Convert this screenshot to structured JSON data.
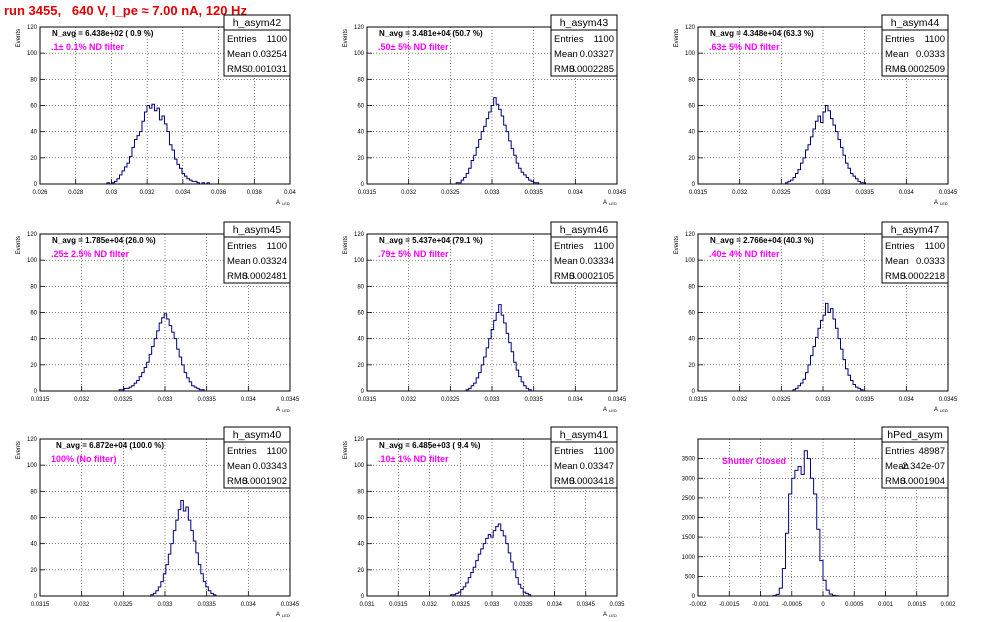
{
  "page": {
    "title": "run 3455,   640 V, I_pe ≈ 7.00 nA, 120 Hz"
  },
  "chart_data": [
    {
      "type": "histogram",
      "hist_name": "h_asym42",
      "annotation": "N_avg = 6.438e+02 ( 0.9 %)",
      "filter_label": ".1± 0.1% ND filter",
      "stats": {
        "entries": "1100",
        "mean": "0.03254",
        "rms": "0.001031"
      },
      "stats_labels": [
        "Entries",
        "Mean",
        "RMS"
      ],
      "ylabel": "Events",
      "xlabel": "A_LED",
      "xlim": [
        0.026,
        0.04
      ],
      "ylim": [
        0,
        120
      ],
      "xticks": [
        "0.026",
        "0.028",
        "0.03",
        "0.032",
        "0.034",
        "0.036",
        "0.038",
        "0.04"
      ],
      "yticks": [
        "0",
        "20",
        "40",
        "60",
        "80",
        "100",
        "120"
      ],
      "bin_width": 0.00014,
      "bin_start": 0.02975,
      "counts": [
        1,
        0,
        1,
        2,
        4,
        7,
        10,
        13,
        16,
        21,
        28,
        34,
        37,
        40,
        48,
        55,
        60,
        58,
        61,
        56,
        58,
        49,
        52,
        46,
        40,
        30,
        26,
        19,
        15,
        12,
        8,
        6,
        4,
        3,
        2,
        2,
        1,
        0,
        1,
        0,
        1
      ]
    },
    {
      "type": "histogram",
      "hist_name": "h_asym43",
      "annotation": "N_avg = 3.481e+04 (50.7 %)",
      "filter_label": ".50± 5% ND filter",
      "stats": {
        "entries": "1100",
        "mean": "0.03327",
        "rms": "0.0002285"
      },
      "stats_labels": [
        "Entries",
        "Mean",
        "RMS"
      ],
      "ylabel": "Events",
      "xlabel": "A_LED",
      "xlim": [
        0.0315,
        0.0345
      ],
      "ylim": [
        0,
        120
      ],
      "xticks": [
        "0.0315",
        "0.032",
        "0.0325",
        "0.033",
        "0.0335",
        "0.034",
        "0.0345"
      ],
      "yticks": [
        "0",
        "20",
        "40",
        "60",
        "80",
        "100",
        "120"
      ],
      "bin_width": 3e-05,
      "bin_start": 0.03257,
      "counts": [
        1,
        1,
        3,
        5,
        8,
        12,
        18,
        22,
        28,
        34,
        40,
        44,
        50,
        55,
        60,
        66,
        61,
        57,
        52,
        45,
        40,
        33,
        27,
        22,
        16,
        12,
        9,
        7,
        5,
        3,
        2,
        1,
        1
      ]
    },
    {
      "type": "histogram",
      "hist_name": "h_asym44",
      "annotation": "N_avg = 4.348e+04 (63.3 %)",
      "filter_label": ".63± 5% ND filter",
      "stats": {
        "entries": "1100",
        "mean": "0.0333",
        "rms": "0.0002509"
      },
      "stats_labels": [
        "Entries",
        "Mean",
        "RMS"
      ],
      "ylabel": "Events",
      "xlabel": "A_LED",
      "xlim": [
        0.0315,
        0.0345
      ],
      "ylim": [
        0,
        120
      ],
      "xticks": [
        "0.0315",
        "0.032",
        "0.0325",
        "0.033",
        "0.0335",
        "0.034",
        "0.0345"
      ],
      "yticks": [
        "0",
        "20",
        "40",
        "60",
        "80",
        "100",
        "120"
      ],
      "bin_width": 3e-05,
      "bin_start": 0.03255,
      "counts": [
        1,
        2,
        3,
        5,
        8,
        11,
        16,
        20,
        26,
        30,
        36,
        42,
        48,
        52,
        47,
        55,
        60,
        56,
        50,
        45,
        40,
        34,
        28,
        22,
        16,
        12,
        8,
        6,
        4,
        2,
        1,
        1
      ]
    },
    {
      "type": "histogram",
      "hist_name": "h_asym45",
      "annotation": "N_avg = 1.785e+04 (26.0 %)",
      "filter_label": ".25± 2.5% ND filter",
      "stats": {
        "entries": "1100",
        "mean": "0.03324",
        "rms": "0.0002481"
      },
      "stats_labels": [
        "Entries",
        "Mean",
        "RMS"
      ],
      "ylabel": "Events",
      "xlabel": "A_LED",
      "xlim": [
        0.0315,
        0.0345
      ],
      "ylim": [
        0,
        120
      ],
      "xticks": [
        "0.0315",
        "0.032",
        "0.0325",
        "0.033",
        "0.0335",
        "0.034",
        "0.0345"
      ],
      "yticks": [
        "0",
        "20",
        "40",
        "60",
        "80",
        "100",
        "120"
      ],
      "bin_width": 3e-05,
      "bin_start": 0.03245,
      "counts": [
        1,
        1,
        2,
        2,
        3,
        4,
        6,
        8,
        11,
        14,
        18,
        22,
        28,
        34,
        40,
        46,
        52,
        56,
        59,
        55,
        50,
        45,
        40,
        32,
        26,
        20,
        14,
        10,
        7,
        4,
        3,
        2,
        1,
        1
      ]
    },
    {
      "type": "histogram",
      "hist_name": "h_asym46",
      "annotation": "N_avg = 5.437e+04 (79.1 %)",
      "filter_label": ".79± 5% ND filter",
      "stats": {
        "entries": "1100",
        "mean": "0.03334",
        "rms": "0.0002105"
      },
      "stats_labels": [
        "Entries",
        "Mean",
        "RMS"
      ],
      "ylabel": "Events",
      "xlabel": "A_LED",
      "xlim": [
        0.0315,
        0.0345
      ],
      "ylim": [
        0,
        120
      ],
      "xticks": [
        "0.0315",
        "0.032",
        "0.0325",
        "0.033",
        "0.0335",
        "0.034",
        "0.0345"
      ],
      "yticks": [
        "0",
        "20",
        "40",
        "60",
        "80",
        "100",
        "120"
      ],
      "bin_width": 3e-05,
      "bin_start": 0.03269,
      "counts": [
        1,
        2,
        4,
        6,
        10,
        14,
        20,
        26,
        33,
        40,
        47,
        54,
        60,
        66,
        58,
        52,
        44,
        37,
        30,
        22,
        16,
        11,
        7,
        4,
        2,
        1
      ]
    },
    {
      "type": "histogram",
      "hist_name": "h_asym47",
      "annotation": "N_avg = 2.766e+04 (40.3 %)",
      "filter_label": ".40± 4% ND filter",
      "stats": {
        "entries": "1100",
        "mean": "0.0333",
        "rms": "0.0002218"
      },
      "stats_labels": [
        "Entries",
        "Mean",
        "RMS"
      ],
      "ylabel": "Events",
      "xlabel": "A_LED",
      "xlim": [
        0.0315,
        0.0345
      ],
      "ylim": [
        0,
        120
      ],
      "xticks": [
        "0.0315",
        "0.032",
        "0.0325",
        "0.033",
        "0.0335",
        "0.034",
        "0.0345"
      ],
      "yticks": [
        "0",
        "20",
        "40",
        "60",
        "80",
        "100",
        "120"
      ],
      "bin_width": 3e-05,
      "bin_start": 0.03264,
      "counts": [
        1,
        2,
        4,
        6,
        9,
        14,
        20,
        27,
        34,
        41,
        48,
        54,
        58,
        67,
        60,
        63,
        55,
        48,
        40,
        32,
        24,
        17,
        12,
        8,
        5,
        3,
        2,
        1
      ]
    },
    {
      "type": "histogram",
      "hist_name": "h_asym40",
      "annotation": "N_avg = 6.872e+04 (100.0 %)",
      "filter_label": "100% (No filter)",
      "stats": {
        "entries": "1100",
        "mean": "0.03343",
        "rms": "0.0001902"
      },
      "stats_labels": [
        "Entries",
        "Mean",
        "RMS"
      ],
      "ylabel": "Events",
      "xlabel": "A_LED",
      "xlim": [
        0.0315,
        0.0345
      ],
      "ylim": [
        0,
        120
      ],
      "xticks": [
        "0.0315",
        "0.032",
        "0.0325",
        "0.033",
        "0.0335",
        "0.034",
        "0.0345"
      ],
      "yticks": [
        "0",
        "20",
        "40",
        "60",
        "80",
        "100",
        "120"
      ],
      "bin_width": 3e-05,
      "bin_start": 0.03283,
      "counts": [
        1,
        2,
        4,
        7,
        11,
        17,
        24,
        32,
        40,
        50,
        58,
        66,
        73,
        65,
        68,
        58,
        50,
        42,
        33,
        24,
        17,
        11,
        7,
        4,
        2,
        1
      ]
    },
    {
      "type": "histogram",
      "hist_name": "h_asym41",
      "annotation": "N_avg = 6.485e+03 ( 9.4 %)",
      "filter_label": ".10± 1% ND filter",
      "stats": {
        "entries": "1100",
        "mean": "0.03347",
        "rms": "0.0003418"
      },
      "stats_labels": [
        "Entries",
        "Mean",
        "RMS"
      ],
      "ylabel": "Events",
      "xlabel": "A_LED",
      "xlim": [
        0.031,
        0.035
      ],
      "ylim": [
        0,
        120
      ],
      "xticks": [
        "0.031",
        "0.0315",
        "0.032",
        "0.0325",
        "0.033",
        "0.0335",
        "0.034",
        "0.0345",
        "0.035"
      ],
      "yticks": [
        "0",
        "20",
        "40",
        "60",
        "80",
        "100",
        "120"
      ],
      "bin_width": 4e-05,
      "bin_start": 0.03234,
      "counts": [
        1,
        1,
        2,
        3,
        5,
        7,
        10,
        14,
        18,
        22,
        27,
        32,
        36,
        40,
        44,
        47,
        45,
        50,
        53,
        55,
        50,
        46,
        40,
        33,
        26,
        20,
        14,
        9,
        6,
        3,
        2,
        1
      ]
    },
    {
      "type": "histogram",
      "hist_name": "hPed_asym",
      "annotation": "",
      "filter_label": "Shutter Closed",
      "stats": {
        "entries": "48987",
        "mean": "-2.342e-07",
        "rms": "0.0001904"
      },
      "stats_labels": [
        "Entries",
        "Mean",
        "RMS"
      ],
      "ylabel": "",
      "xlabel": "",
      "xlim": [
        -0.002,
        0.002
      ],
      "ylim": [
        0,
        4000
      ],
      "xticks": [
        "-0.002",
        "-0.0015",
        "-0.001",
        "-0.0005",
        "0",
        "0.0005",
        "0.001",
        "0.0015",
        "0.002"
      ],
      "yticks": [
        "0",
        "500",
        "1000",
        "1500",
        "2000",
        "2500",
        "3000",
        "3500"
      ],
      "ytick_values": [
        0,
        500,
        1000,
        1500,
        2000,
        2500,
        3000,
        3500
      ],
      "bin_width": 5e-05,
      "bin_start": -0.0008,
      "counts": [
        10,
        40,
        200,
        700,
        1600,
        2600,
        3000,
        3200,
        3300,
        3100,
        3700,
        3500,
        3000,
        2600,
        1700,
        900,
        400,
        150,
        50,
        15,
        5
      ]
    }
  ]
}
